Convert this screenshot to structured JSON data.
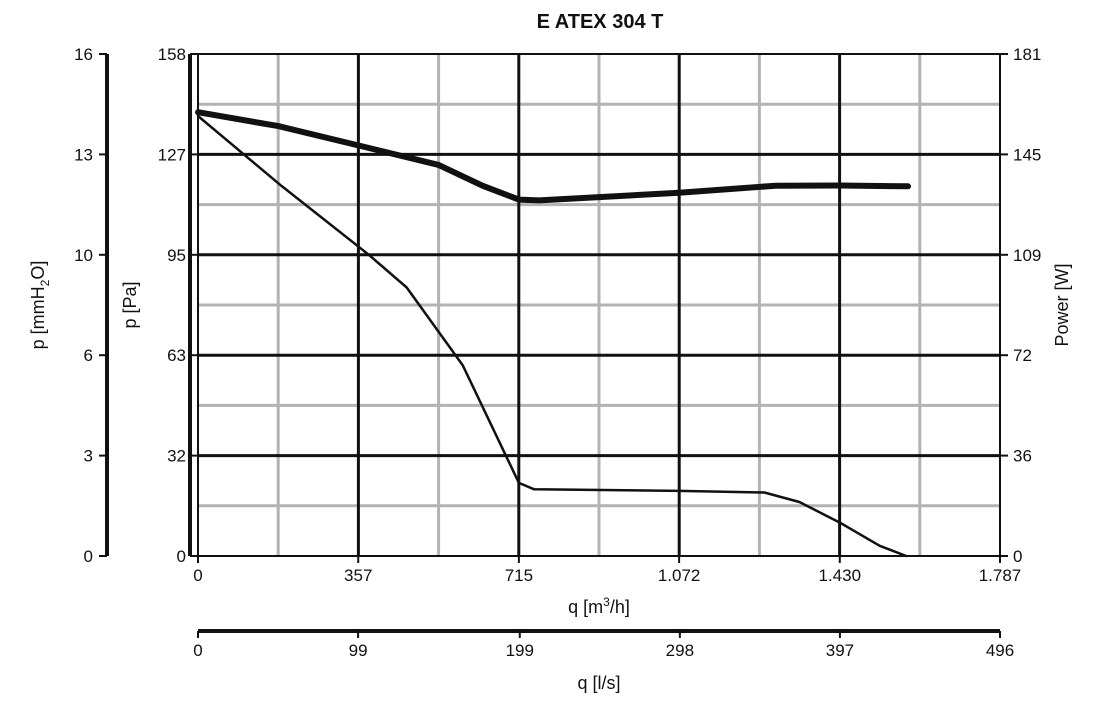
{
  "chart_data": {
    "type": "line",
    "title": "E ATEX 304 T",
    "x_axis": {
      "label": "q [m³/h]",
      "label_main": "q [m",
      "label_sup": "3",
      "label_end": "/h]",
      "range": [
        0,
        1787
      ],
      "tick_values": [
        0,
        357,
        715,
        1072,
        1430,
        1787
      ],
      "tick_labels": [
        "0",
        "357",
        "715",
        "1.072",
        "1.430",
        "1.787"
      ]
    },
    "x2_axis": {
      "label": "q [l/s]",
      "range": [
        0,
        496
      ],
      "tick_values": [
        0,
        99,
        199,
        298,
        397,
        496
      ],
      "tick_labels": [
        "0",
        "99",
        "199",
        "298",
        "397",
        "496"
      ]
    },
    "y_axis": {
      "label": "p [Pa]",
      "range": [
        0,
        158
      ],
      "tick_labels": [
        "0",
        "32",
        "63",
        "95",
        "127",
        "158"
      ]
    },
    "y2_axis": {
      "label": "p [mmH₂O]",
      "label_main": "p [mmH",
      "label_sub": "2",
      "label_end": "O]",
      "range": [
        0,
        16
      ],
      "tick_labels": [
        "0",
        "3",
        "6",
        "10",
        "13",
        "16"
      ]
    },
    "y3_axis": {
      "label": "Power [W]",
      "range": [
        0,
        181
      ],
      "tick_labels": [
        "0",
        "36",
        "72",
        "109",
        "145",
        "181"
      ]
    },
    "grid": true,
    "series": [
      {
        "axis": "pressure",
        "x": [
          0,
          186,
          379,
          465,
          590,
          715,
          749,
          1072,
          1262,
          1340,
          1430,
          1519,
          1578
        ],
        "y": [
          138.5,
          116.5,
          95.0,
          84.5,
          60.0,
          23.0,
          21.0,
          20.5,
          20.0,
          17.0,
          10.5,
          3.2,
          0
        ]
      },
      {
        "axis": "power",
        "x": [
          0,
          179,
          358,
          536,
          634,
          715,
          760,
          1072,
          1287,
          1430,
          1582
        ],
        "y": [
          160,
          155,
          148,
          141,
          133.5,
          128.5,
          128.2,
          131.0,
          133.5,
          133.6,
          133.3
        ]
      }
    ]
  }
}
